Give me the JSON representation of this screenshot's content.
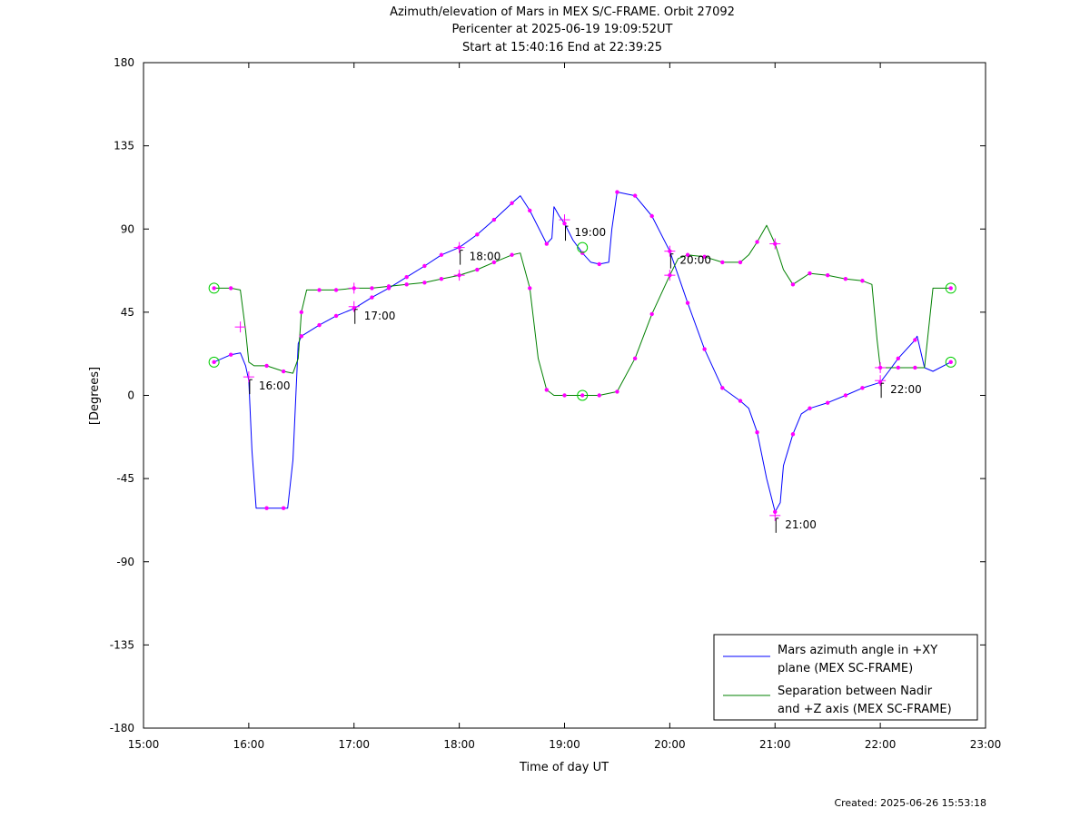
{
  "title": {
    "line1": "Azimuth/elevation of Mars in MEX S/C-FRAME.  Orbit 27092",
    "line2": "Pericenter at 2025-06-19 19:09:52UT",
    "line3": "Start at 15:40:16 End at 22:39:25"
  },
  "created": "Created: 2025-06-26 15:53:18",
  "chart_data": {
    "type": "line",
    "xlabel": "Time of day UT",
    "ylabel": "[Degrees]",
    "xlim": [
      15.0,
      23.0
    ],
    "ylim": [
      -180,
      180
    ],
    "x_ticks": [
      15,
      16,
      17,
      18,
      19,
      20,
      21,
      22,
      23
    ],
    "x_tick_labels": [
      "15:00",
      "16:00",
      "17:00",
      "18:00",
      "19:00",
      "20:00",
      "21:00",
      "22:00",
      "23:00"
    ],
    "y_ticks": [
      180,
      135,
      90,
      45,
      0,
      -45,
      -90,
      -135,
      -180
    ],
    "y_tick_labels": [
      "180",
      "135",
      "90",
      "45",
      "0",
      "-45",
      "-90",
      "-135",
      "-180"
    ],
    "grid": false,
    "legend_position": "bottom-right",
    "series": [
      {
        "name": "Mars azimuth angle in +XY plane (MEX SC-FRAME)",
        "legend_lines": [
          "Mars azimuth angle in +XY",
          "plane (MEX SC-FRAME)"
        ],
        "color": "#0000ff",
        "x": [
          15.67,
          15.83,
          15.92,
          15.97,
          16.0,
          16.03,
          16.07,
          16.17,
          16.33,
          16.37,
          16.42,
          16.47,
          16.5,
          16.67,
          16.83,
          17.0,
          17.17,
          17.33,
          17.5,
          17.67,
          17.83,
          18.0,
          18.17,
          18.33,
          18.5,
          18.58,
          18.67,
          18.83,
          18.88,
          18.9,
          18.95,
          19.0,
          19.08,
          19.17,
          19.25,
          19.33,
          19.42,
          19.45,
          19.5,
          19.67,
          19.83,
          20.0,
          20.17,
          20.33,
          20.5,
          20.67,
          20.75,
          20.83,
          20.92,
          21.0,
          21.05,
          21.08,
          21.17,
          21.25,
          21.33,
          21.5,
          21.67,
          21.83,
          22.0,
          22.08,
          22.17,
          22.33,
          22.35,
          22.42,
          22.5,
          22.67
        ],
        "y": [
          18,
          22,
          23,
          16,
          8,
          -30,
          -61,
          -61,
          -61,
          -61,
          -35,
          28,
          32,
          38,
          43,
          47,
          53,
          58,
          64,
          70,
          76,
          80,
          87,
          95,
          104,
          108,
          100,
          82,
          85,
          102,
          97,
          93,
          84,
          77,
          72,
          71,
          72,
          90,
          110,
          108,
          97,
          78,
          50,
          25,
          4,
          -3,
          -7,
          -20,
          -45,
          -63,
          -58,
          -38,
          -21,
          -10,
          -7,
          -4,
          0,
          4,
          7,
          13,
          20,
          30,
          32,
          15,
          13,
          18
        ],
        "markers_x": [
          15.67,
          15.83,
          16.17,
          16.33,
          16.5,
          16.67,
          16.83,
          17.0,
          17.17,
          17.33,
          17.5,
          17.67,
          17.83,
          18.0,
          18.17,
          18.33,
          18.5,
          18.67,
          18.83,
          19.0,
          19.17,
          19.33,
          19.5,
          19.67,
          19.83,
          20.0,
          20.17,
          20.33,
          20.5,
          20.67,
          20.83,
          21.0,
          21.17,
          21.33,
          21.5,
          21.67,
          21.83,
          22.0,
          22.17,
          22.33,
          22.67
        ],
        "hour_crosses": [
          [
            15.92,
            37
          ],
          [
            16.0,
            10
          ],
          [
            17.0,
            48
          ],
          [
            18.0,
            80
          ],
          [
            19.0,
            95
          ],
          [
            20.0,
            78
          ],
          [
            21.0,
            -65
          ],
          [
            21.0,
            82
          ],
          [
            22.0,
            8
          ]
        ],
        "circles": [
          [
            15.67,
            18
          ],
          [
            22.67,
            18
          ]
        ]
      },
      {
        "name": "Separation between Nadir and +Z axis (MEX SC-FRAME)",
        "legend_lines": [
          "Separation between Nadir",
          "and +Z axis (MEX SC-FRAME)"
        ],
        "color": "#008000",
        "x": [
          15.67,
          15.83,
          15.92,
          15.97,
          16.0,
          16.05,
          16.17,
          16.33,
          16.42,
          16.47,
          16.5,
          16.55,
          16.67,
          16.83,
          17.0,
          17.17,
          17.33,
          17.5,
          17.67,
          17.83,
          18.0,
          18.17,
          18.33,
          18.5,
          18.58,
          18.67,
          18.75,
          18.83,
          18.9,
          19.0,
          19.17,
          19.33,
          19.5,
          19.67,
          19.83,
          20.0,
          20.08,
          20.17,
          20.33,
          20.5,
          20.67,
          20.75,
          20.83,
          20.92,
          21.0,
          21.08,
          21.17,
          21.25,
          21.33,
          21.5,
          21.67,
          21.83,
          21.92,
          21.97,
          22.0,
          22.17,
          22.33,
          22.42,
          22.5,
          22.67
        ],
        "y": [
          58,
          58,
          57,
          35,
          18,
          16,
          16,
          13,
          12,
          20,
          45,
          57,
          57,
          57,
          58,
          58,
          59,
          60,
          61,
          63,
          65,
          68,
          72,
          76,
          77,
          58,
          20,
          3,
          0,
          0,
          0,
          0,
          2,
          20,
          44,
          65,
          74,
          76,
          75,
          72,
          72,
          76,
          83,
          92,
          82,
          68,
          60,
          63,
          66,
          65,
          63,
          62,
          60,
          30,
          15,
          15,
          15,
          15,
          58,
          58
        ],
        "markers_x": [
          15.67,
          15.83,
          16.17,
          16.33,
          16.5,
          16.67,
          16.83,
          17.0,
          17.17,
          17.33,
          17.5,
          17.67,
          17.83,
          18.0,
          18.17,
          18.33,
          18.5,
          18.67,
          18.83,
          19.0,
          19.17,
          19.33,
          19.5,
          19.67,
          19.83,
          20.0,
          20.17,
          20.33,
          20.5,
          20.67,
          20.83,
          21.0,
          21.17,
          21.33,
          21.5,
          21.67,
          21.83,
          22.0,
          22.17,
          22.33,
          22.67
        ],
        "hour_crosses": [
          [
            17.0,
            58
          ],
          [
            18.0,
            65
          ],
          [
            20.0,
            65
          ],
          [
            22.0,
            15
          ]
        ],
        "circles": [
          [
            15.67,
            58
          ],
          [
            19.17,
            80
          ],
          [
            19.17,
            0
          ],
          [
            22.67,
            58
          ]
        ]
      }
    ],
    "annotations": [
      {
        "label": "16:00",
        "x": 16.0,
        "y": 10
      },
      {
        "label": "17:00",
        "x": 17.0,
        "y": 48
      },
      {
        "label": "18:00",
        "x": 18.0,
        "y": 80
      },
      {
        "label": "19:00",
        "x": 19.0,
        "y": 93
      },
      {
        "label": "20:00",
        "x": 20.0,
        "y": 78
      },
      {
        "label": "21:00",
        "x": 21.0,
        "y": -65
      },
      {
        "label": "22:00",
        "x": 22.0,
        "y": 8
      }
    ]
  }
}
